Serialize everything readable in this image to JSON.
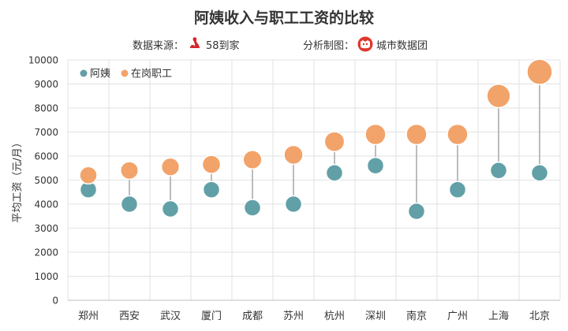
{
  "header": {
    "title": "阿姨收入与职工工资的比较",
    "source_label": "数据来源：",
    "source_name": "58到家",
    "maker_label": "分析制图：",
    "maker_name": "城市数据团"
  },
  "colors": {
    "series_ayi": "#62a0a7",
    "series_worker": "#f2a36a",
    "connector": "#a6a6a6",
    "grid": "#e2e2e2",
    "logo_58": "#d7262c",
    "logo_city": "#e0372c"
  },
  "chart_data": {
    "type": "scatter",
    "title": "阿姨收入与职工工资的比较",
    "xlabel": "",
    "ylabel": "平均工资（元/月）",
    "ylim": [
      0,
      10000
    ],
    "yticks": [
      0,
      1000,
      2000,
      3000,
      4000,
      5000,
      6000,
      7000,
      8000,
      9000,
      10000
    ],
    "grid": true,
    "legend_position": "top-left",
    "categories": [
      "郑州",
      "西安",
      "武汉",
      "厦门",
      "成都",
      "苏州",
      "杭州",
      "深圳",
      "南京",
      "广州",
      "上海",
      "北京"
    ],
    "series": [
      {
        "name": "阿姨",
        "values": [
          4600,
          4000,
          3800,
          4600,
          3850,
          4000,
          5300,
          5600,
          3700,
          4600,
          5400,
          5300
        ]
      },
      {
        "name": "在岗职工",
        "values": [
          5200,
          5400,
          5550,
          5650,
          5850,
          6050,
          6600,
          6900,
          6900,
          6900,
          8500,
          9500
        ]
      }
    ]
  }
}
